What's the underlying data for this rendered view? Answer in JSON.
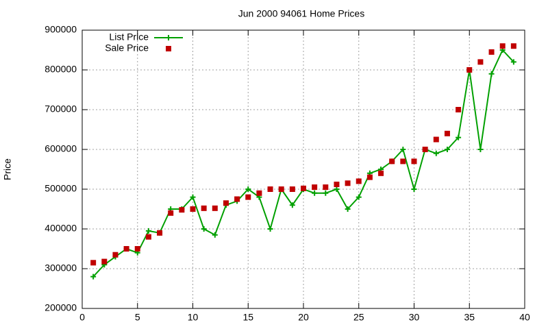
{
  "chart_data": {
    "type": "line",
    "title": "Jun 2000 94061 Home Prices",
    "y_label": "Price",
    "x": [
      1,
      2,
      3,
      4,
      5,
      6,
      7,
      8,
      9,
      10,
      11,
      12,
      13,
      14,
      15,
      16,
      17,
      18,
      19,
      20,
      21,
      22,
      23,
      24,
      25,
      26,
      27,
      28,
      29,
      30,
      31,
      32,
      33,
      34,
      35,
      36,
      37,
      38,
      39
    ],
    "series": [
      {
        "name": "List Price",
        "color": "#00a000",
        "style": "linespoints",
        "values": [
          280000,
          310000,
          330000,
          350000,
          340000,
          395000,
          390000,
          450000,
          450000,
          480000,
          400000,
          385000,
          460000,
          470000,
          500000,
          480000,
          400000,
          500000,
          460000,
          500000,
          490000,
          490000,
          500000,
          450000,
          480000,
          540000,
          550000,
          570000,
          600000,
          500000,
          600000,
          590000,
          600000,
          630000,
          800000,
          600000,
          790000,
          850000,
          820000
        ]
      },
      {
        "name": "Sale Price",
        "color": "#c00000",
        "style": "points",
        "values": [
          315000,
          318000,
          335000,
          350000,
          350000,
          380000,
          390000,
          440000,
          448000,
          450000,
          452000,
          452000,
          465000,
          475000,
          480000,
          490000,
          500000,
          500000,
          500000,
          502000,
          505000,
          505000,
          512000,
          515000,
          520000,
          530000,
          540000,
          570000,
          570000,
          570000,
          600000,
          625000,
          640000,
          700000,
          800000,
          820000,
          845000,
          860000,
          860000
        ]
      }
    ],
    "xlim": [
      0,
      40
    ],
    "ylim": [
      200000,
      900000
    ],
    "xticks": [
      0,
      5,
      10,
      15,
      20,
      25,
      30,
      35,
      40
    ],
    "yticks": [
      200000,
      300000,
      400000,
      500000,
      600000,
      700000,
      800000,
      900000
    ],
    "grid": true,
    "legend": "top-left"
  }
}
